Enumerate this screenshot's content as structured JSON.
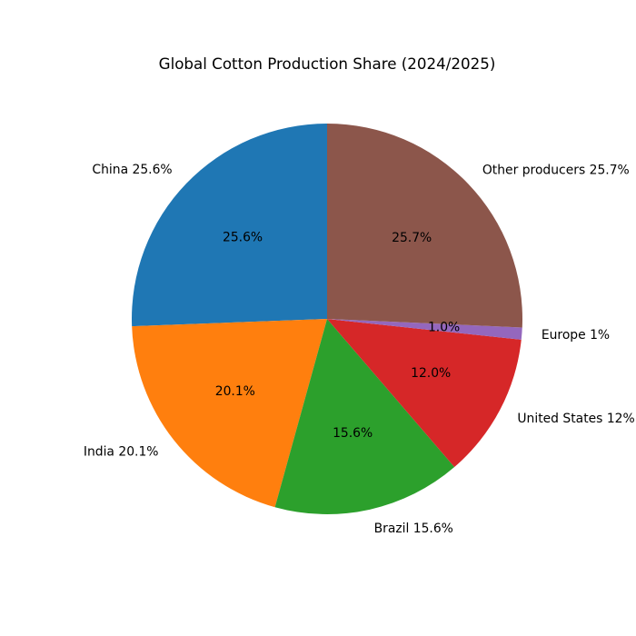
{
  "figure": {
    "background": "#ffffff"
  },
  "chart_data": {
    "type": "pie",
    "title": "Global Cotton Production Share (2024/2025)",
    "start_angle_deg": 90,
    "direction": "counterclockwise",
    "unit": "percent of global production",
    "legend": "none",
    "total": 100,
    "slices": [
      {
        "id": "china",
        "label": "China",
        "value": 25.6,
        "display_label": "China 25.6%",
        "pct_label": "25.6%",
        "color": "#1f77b4"
      },
      {
        "id": "india",
        "label": "India",
        "value": 20.1,
        "display_label": "India 20.1%",
        "pct_label": "20.1%",
        "color": "#ff7f0e"
      },
      {
        "id": "brazil",
        "label": "Brazil",
        "value": 15.6,
        "display_label": "Brazil 15.6%",
        "pct_label": "15.6%",
        "color": "#2ca02c"
      },
      {
        "id": "united-states",
        "label": "United States",
        "value": 12.0,
        "display_label": "United States 12%",
        "pct_label": "12.0%",
        "color": "#d62728"
      },
      {
        "id": "europe",
        "label": "Europe",
        "value": 1.0,
        "display_label": "Europe 1%",
        "pct_label": "1.0%",
        "color": "#9467bd"
      },
      {
        "id": "other-producers",
        "label": "Other producers",
        "value": 25.7,
        "display_label": "Other producers 25.7%",
        "pct_label": "25.7%",
        "color": "#8c564b"
      }
    ]
  }
}
